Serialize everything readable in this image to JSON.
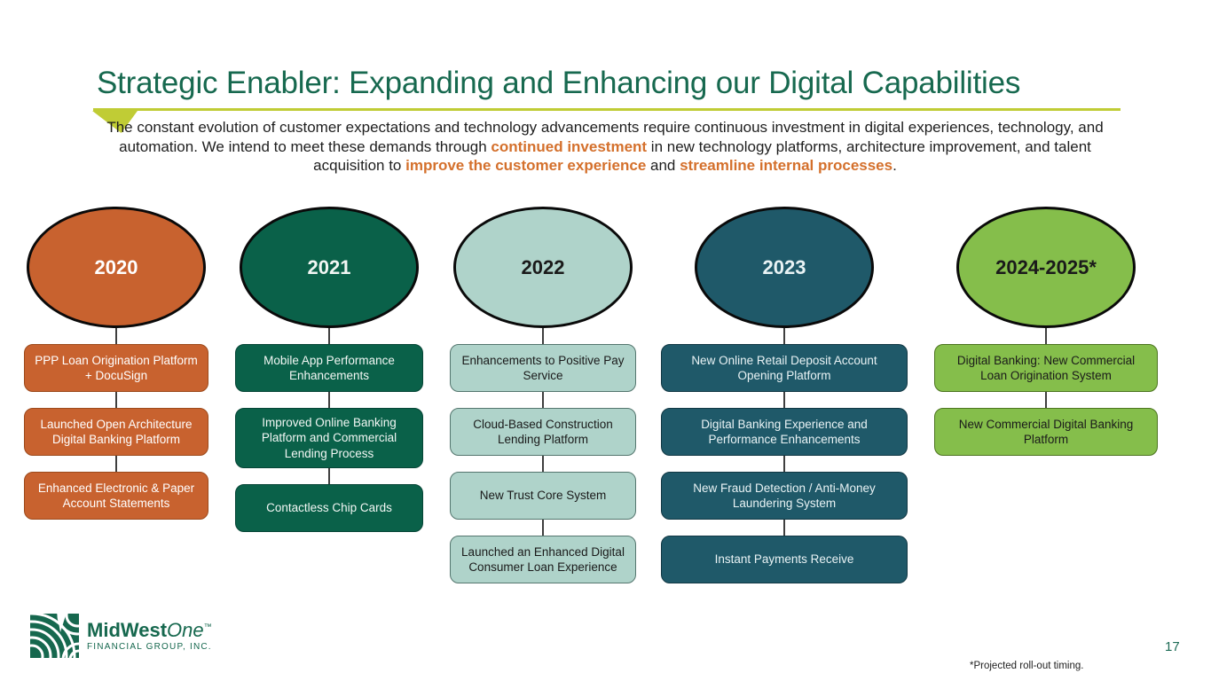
{
  "slide": {
    "title": "Strategic Enabler: Expanding and Enhancing our Digital Capabilities",
    "page_number": "17",
    "footnote": "*Projected roll-out timing."
  },
  "intro": {
    "segments": [
      {
        "text": "The constant evolution of customer expectations and technology advancements require continuous investment in digital experiences, technology, and automation. We intend to meet these demands through ",
        "style": "normal"
      },
      {
        "text": "continued investment",
        "style": "em"
      },
      {
        "text": " in new technology platforms, architecture improvement, and talent acquisition to ",
        "style": "normal"
      },
      {
        "text": "improve the customer experience",
        "style": "em"
      },
      {
        "text": " and ",
        "style": "normal"
      },
      {
        "text": "streamline internal processes",
        "style": "em"
      },
      {
        "text": ".",
        "style": "normal"
      }
    ]
  },
  "timeline": {
    "columns": [
      {
        "year": "2020",
        "colors": {
          "fill": "#C8622F",
          "border": "#9C4A1C",
          "text": "#FFFFFF"
        },
        "items": [
          "PPP Loan Origination Platform + DocuSign",
          "Launched Open Architecture Digital Banking Platform",
          "Enhanced Electronic & Paper Account Statements"
        ]
      },
      {
        "year": "2021",
        "colors": {
          "fill": "#0A6149",
          "border": "#064536",
          "text": "#F2F7F4"
        },
        "items": [
          "Mobile App Performance Enhancements",
          "Improved Online Banking Platform and Commercial Lending Process",
          "Contactless Chip Cards"
        ]
      },
      {
        "year": "2022",
        "colors": {
          "fill": "#AFD3CA",
          "border": "#54766E",
          "text": "#1A1A1A"
        },
        "items": [
          "Enhancements to Positive Pay Service",
          "Cloud-Based Construction Lending Platform",
          "New Trust Core System",
          "Launched an Enhanced Digital Consumer Loan Experience"
        ]
      },
      {
        "year": "2023",
        "colors": {
          "fill": "#1F5969",
          "border": "#123844",
          "text": "#E9F3F5"
        },
        "items": [
          "New Online Retail Deposit Account Opening Platform",
          "Digital Banking Experience and Performance Enhancements",
          "New Fraud Detection / Anti-Money Laundering System",
          "Instant Payments Receive"
        ]
      },
      {
        "year": "2024-2025*",
        "colors": {
          "fill": "#85BE4B",
          "border": "#4C741F",
          "text": "#1A1A1A"
        },
        "items": [
          "Digital Banking: New Commercial Loan Origination System",
          "New Commercial Digital Banking Platform"
        ]
      }
    ]
  },
  "logo": {
    "icon": "field-rows-icon",
    "brand_bold": "MidWest",
    "brand_italic": "One",
    "trademark": "™",
    "subtitle": "FINANCIAL GROUP, INC.",
    "color": "#16684E"
  },
  "accents": {
    "title_color": "#17694F",
    "divider_color": "#C0CC35",
    "highlight_color": "#D4702C",
    "page_number_color": "#1D6B55",
    "connector_color": "#3F3F3F",
    "ellipse_outline_color": "#0A0A0A"
  }
}
